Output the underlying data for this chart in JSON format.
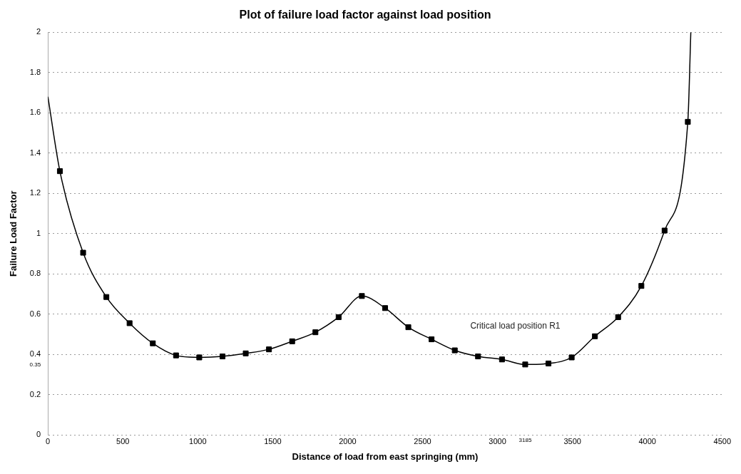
{
  "chart_data": {
    "type": "line",
    "title": "Plot of failure load factor against load position",
    "xlabel": "Distance of load from east springing (mm)",
    "ylabel": "Failure Load Factor",
    "series": [
      {
        "color": "#000000",
        "marker": "none",
        "x": [
          0,
          80,
          235,
          390,
          545,
          700,
          855,
          1010,
          1165,
          1320,
          1475,
          1630,
          1785,
          1940,
          2095,
          2250,
          2405,
          2560,
          2715,
          2870,
          3030,
          3185,
          3340,
          3495,
          3650,
          3805,
          3960,
          4115,
          4270,
          4290
        ],
        "values": [
          1.68,
          1.31,
          0.905,
          0.685,
          0.555,
          0.455,
          0.395,
          0.385,
          0.39,
          0.405,
          0.425,
          0.465,
          0.51,
          0.585,
          0.69,
          0.63,
          0.535,
          0.475,
          0.42,
          0.39,
          0.375,
          0.35,
          0.355,
          0.385,
          0.49,
          0.585,
          0.74,
          1.015,
          1.555,
          2
        ]
      },
      {
        "type": "scatter",
        "color": "#000000",
        "marker": "square",
        "x": [
          80,
          235,
          390,
          545,
          700,
          855,
          1010,
          1165,
          1320,
          1475,
          1630,
          1785,
          1940,
          2095,
          2250,
          2405,
          2560,
          2715,
          2870,
          3030,
          3185,
          3340,
          3495,
          3650,
          3805,
          3960,
          4115,
          4270
        ],
        "values": [
          1.31,
          0.905,
          0.685,
          0.555,
          0.455,
          0.395,
          0.385,
          0.39,
          0.405,
          0.425,
          0.465,
          0.51,
          0.585,
          0.69,
          0.63,
          0.535,
          0.475,
          0.42,
          0.39,
          0.375,
          0.35,
          0.355,
          0.385,
          0.49,
          0.585,
          0.74,
          1.015,
          1.555
        ]
      }
    ],
    "xlim": [
      0,
      4500
    ],
    "xticks": [
      0,
      500,
      1000,
      1500,
      2000,
      2500,
      3000,
      {
        "value": 3185,
        "label": "3185"
      },
      3500,
      4000,
      4500
    ],
    "ylim": [
      0,
      2
    ],
    "yticks": [
      0,
      0.2,
      {
        "value": 0.35,
        "label": "0.35"
      },
      0.4,
      0.6,
      0.8,
      1,
      1.2,
      1.4,
      1.6,
      1.8,
      2
    ],
    "grid": "y",
    "legend": false,
    "annotations": [
      "Critical load position R1"
    ]
  }
}
